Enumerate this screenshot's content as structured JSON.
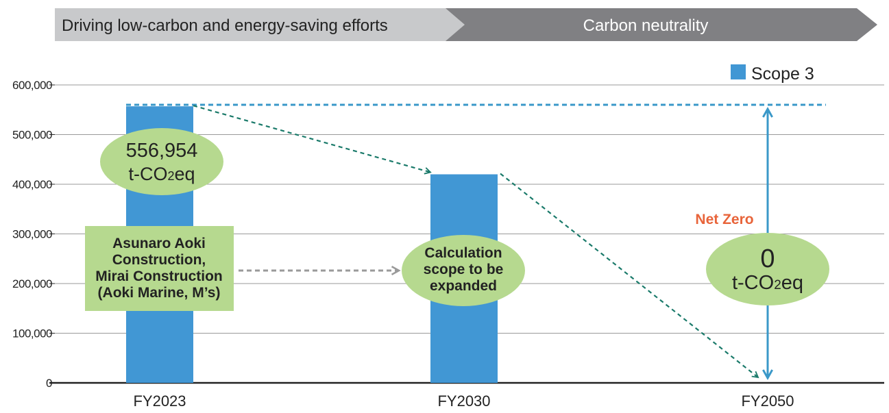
{
  "phases": [
    {
      "label": "Driving low-carbon and energy-saving efforts",
      "color": "#c8c9cb",
      "text_color": "#222222"
    },
    {
      "label": "Carbon neutrality",
      "color": "#808083",
      "text_color": "#ffffff"
    }
  ],
  "chart_data": {
    "type": "bar",
    "categories": [
      "FY2023",
      "FY2030",
      "FY2050"
    ],
    "series": [
      {
        "name": "Scope 3",
        "values": [
          556954,
          420000,
          0
        ],
        "color": "#4197d4"
      }
    ],
    "ylim": [
      0,
      600000
    ],
    "yticks": [
      0,
      100000,
      200000,
      300000,
      400000,
      500000,
      600000
    ],
    "ytick_labels": [
      "0",
      "100,000",
      "200,000",
      "300,000",
      "400,000",
      "500,000",
      "600,000"
    ],
    "grid": true,
    "legend": {
      "label": "Scope 3",
      "position": "top-right"
    },
    "reference_line_value": 560000,
    "annotations": {
      "fy2023_value": "556,954",
      "fy2023_unit_main": "t-CO",
      "fy2023_unit_sub": "2",
      "fy2023_unit_tail": "eq",
      "fy2023_companies": [
        "Asunaro Aoki",
        "Construction,",
        "Mirai Construction",
        "(Aoki Marine, M’s)"
      ],
      "fy2030_note": [
        "Calculation",
        "scope to be",
        "expanded"
      ],
      "fy2050_value": "0",
      "fy2050_unit_main": "t-CO",
      "fy2050_unit_sub": "2",
      "fy2050_unit_tail": "eq",
      "net_zero": "Net Zero"
    },
    "colors": {
      "bar": "#4197d4",
      "ellipse": "#b6d98f",
      "company_box": "#b6d98f",
      "trend_arrow": "#1a7a6a",
      "grey_arrow": "#9a9a9a",
      "net_zero": "#e8643a",
      "reference_line": "#3a98c8",
      "axis": "#222222",
      "grid": "#999999"
    }
  }
}
